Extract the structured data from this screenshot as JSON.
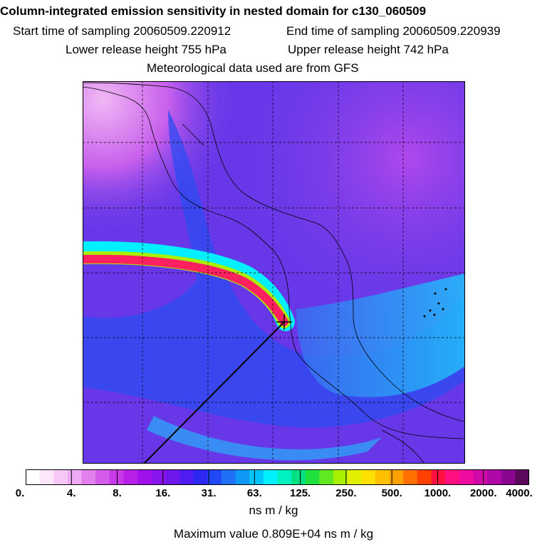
{
  "header": {
    "title": "Column-integrated emission sensitivity in nested domain for c130_060509",
    "start_label": "Start time of sampling 20060509.220912",
    "end_label": "End time of sampling 20060509.220939",
    "lower_label": "Lower release height  755 hPa",
    "upper_label": "Upper release height  742 hPa",
    "met_label": "Meteorological data used are from GFS"
  },
  "colorbar": {
    "ticks": [
      "0.",
      "4.",
      "8.",
      "16.",
      "31.",
      "63.",
      "125.",
      "250.",
      "500.",
      "1000.",
      "2000.",
      "4000."
    ],
    "colors": [
      "#ffffff",
      "#fce6fc",
      "#f5c8f6",
      "#eeaaf2",
      "#e280ee",
      "#d45cec",
      "#c83ae8",
      "#b820e8",
      "#a010ea",
      "#8a14ec",
      "#6e18ee",
      "#4e1cf0",
      "#2c28f2",
      "#2048f4",
      "#2070f6",
      "#1098f8",
      "#00c4fa",
      "#00f0ff",
      "#00f0c0",
      "#00e080",
      "#20e040",
      "#60e820",
      "#a8f000",
      "#e0f000",
      "#ffe000",
      "#ffc000",
      "#ffa000",
      "#ff7000",
      "#ff4000",
      "#ff1040",
      "#ff1080",
      "#f00ca0",
      "#d00aa8",
      "#b008a8",
      "#8a0690",
      "#5a0a5a"
    ],
    "units": "ns m / kg"
  },
  "footer": {
    "max_value": "Maximum value  0.809E+04 ns m / kg"
  },
  "map": {
    "background": "#6a3ae8",
    "plume_colors": [
      "#00f0ff",
      "#a8f000",
      "#ff2060"
    ],
    "gridline_color": "#000000"
  }
}
